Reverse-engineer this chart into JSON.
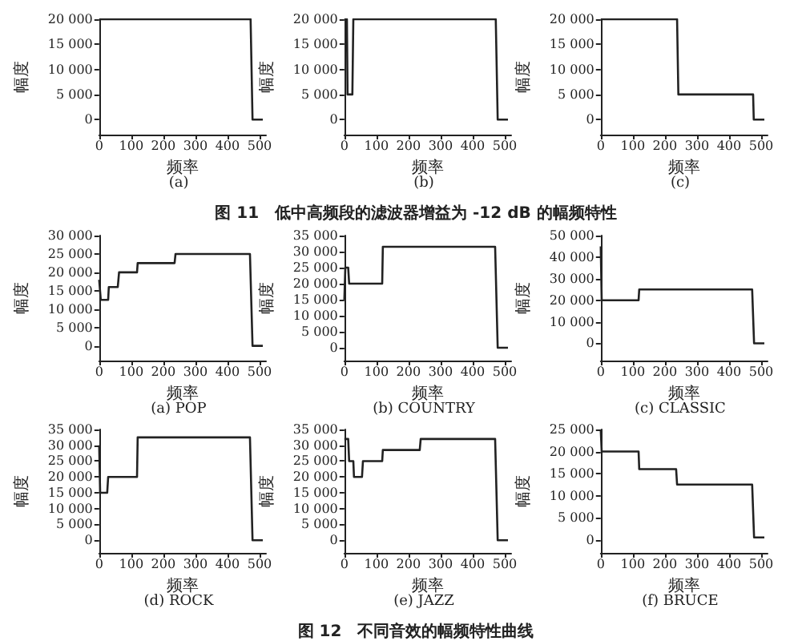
{
  "chart_data": [
    {
      "type": "line",
      "title": "(a)",
      "xlabel": "频率",
      "ylabel": "幅度",
      "x": [
        0,
        472,
        478,
        510
      ],
      "series": [
        {
          "color": "#222222",
          "values": [
            20000,
            20000,
            0,
            0
          ]
        }
      ],
      "xlim": [
        0,
        520
      ],
      "xticks": [
        0,
        100,
        200,
        300,
        400,
        500
      ],
      "ylim": [
        -3000,
        20000
      ],
      "yticks": [
        {
          "value": 0,
          "label": "0"
        },
        {
          "value": 5000,
          "label": "5 000"
        },
        {
          "value": 10000,
          "label": "10 000"
        },
        {
          "value": 15000,
          "label": "15 000"
        },
        {
          "value": 20000,
          "label": "20 000"
        }
      ],
      "marker": "none"
    },
    {
      "type": "line",
      "title": "(b)",
      "xlabel": "频率",
      "ylabel": "幅度",
      "x": [
        0,
        8,
        10,
        25,
        28,
        472,
        478,
        510
      ],
      "series": [
        {
          "color": "#222222",
          "values": [
            20000,
            20000,
            5000,
            5000,
            20000,
            20000,
            0,
            0
          ]
        }
      ],
      "xlim": [
        0,
        520
      ],
      "xticks": [
        0,
        100,
        200,
        300,
        400,
        500
      ],
      "ylim": [
        -3000,
        20000
      ],
      "yticks": [
        {
          "value": 0,
          "label": "0"
        },
        {
          "value": 5000,
          "label": "5 000"
        },
        {
          "value": 10000,
          "label": "10 000"
        },
        {
          "value": 15000,
          "label": "15 000"
        },
        {
          "value": 20000,
          "label": "20 000"
        }
      ],
      "marker": "none",
      "annotations": [
        "图 11　低中高频段的滤波器增益为 -12 dB 的幅频特性"
      ]
    },
    {
      "type": "line",
      "title": "(c)",
      "xlabel": "频率",
      "ylabel": "幅度",
      "x": [
        0,
        238,
        242,
        475,
        477,
        510
      ],
      "series": [
        {
          "color": "#222222",
          "values": [
            20000,
            20000,
            5000,
            5000,
            0,
            0
          ]
        }
      ],
      "xlim": [
        0,
        520
      ],
      "xticks": [
        0,
        100,
        200,
        300,
        400,
        500
      ],
      "ylim": [
        -3000,
        20000
      ],
      "yticks": [
        {
          "value": 0,
          "label": "0"
        },
        {
          "value": 5000,
          "label": "5 000"
        },
        {
          "value": 10000,
          "label": "10 000"
        },
        {
          "value": 15000,
          "label": "15 000"
        },
        {
          "value": 20000,
          "label": "20 000"
        }
      ],
      "marker": "none"
    },
    {
      "type": "line",
      "title": "(a) POP",
      "xlabel": "频率",
      "ylabel": "幅度",
      "x": [
        0,
        5,
        28,
        30,
        58,
        62,
        118,
        120,
        235,
        238,
        470,
        478,
        510
      ],
      "series": [
        {
          "color": "#222222",
          "values": [
            18000,
            12500,
            12500,
            16000,
            16000,
            20000,
            20000,
            22500,
            22500,
            25000,
            25000,
            0,
            0
          ]
        }
      ],
      "xlim": [
        0,
        520
      ],
      "xticks": [
        0,
        100,
        200,
        300,
        400,
        500
      ],
      "ylim": [
        -4000,
        30000
      ],
      "yticks": [
        {
          "value": 0,
          "label": "0"
        },
        {
          "value": 5000,
          "label": "5 000"
        },
        {
          "value": 10000,
          "label": "10 000"
        },
        {
          "value": 15000,
          "label": "15 000"
        },
        {
          "value": 20000,
          "label": "20 000"
        },
        {
          "value": 25000,
          "label": "25 000"
        },
        {
          "value": 30000,
          "label": "30 000"
        }
      ],
      "marker": "none"
    },
    {
      "type": "line",
      "title": "(b) COUNTRY",
      "xlabel": "频率",
      "ylabel": "幅度",
      "x": [
        0,
        3,
        12,
        15,
        118,
        120,
        470,
        478,
        510
      ],
      "series": [
        {
          "color": "#222222",
          "values": [
            15000,
            25000,
            25000,
            20000,
            20000,
            31500,
            31500,
            0,
            0
          ]
        }
      ],
      "xlim": [
        0,
        520
      ],
      "xticks": [
        0,
        100,
        200,
        300,
        400,
        500
      ],
      "ylim": [
        -4000,
        35000
      ],
      "yticks": [
        {
          "value": 0,
          "label": "0"
        },
        {
          "value": 5000,
          "label": "5 000"
        },
        {
          "value": 10000,
          "label": "10 000"
        },
        {
          "value": 15000,
          "label": "15 000"
        },
        {
          "value": 20000,
          "label": "20 000"
        },
        {
          "value": 25000,
          "label": "25 000"
        },
        {
          "value": 30000,
          "label": "30 000"
        },
        {
          "value": 35000,
          "label": "35 000"
        }
      ],
      "marker": "none"
    },
    {
      "type": "line",
      "title": "(c) CLASSIC",
      "xlabel": "频率",
      "ylabel": "幅度",
      "x": [
        0,
        3,
        118,
        120,
        472,
        478,
        510
      ],
      "series": [
        {
          "color": "#222222",
          "values": [
            45000,
            20000,
            20000,
            25000,
            25000,
            0,
            0
          ]
        }
      ],
      "xlim": [
        0,
        520
      ],
      "xticks": [
        0,
        100,
        200,
        300,
        400,
        500
      ],
      "ylim": [
        -8000,
        50000
      ],
      "yticks": [
        {
          "value": 0,
          "label": "0"
        },
        {
          "value": 10000,
          "label": "10 000"
        },
        {
          "value": 20000,
          "label": "20 000"
        },
        {
          "value": 30000,
          "label": "30 000"
        },
        {
          "value": 40000,
          "label": "40 000"
        },
        {
          "value": 50000,
          "label": "50 000"
        }
      ],
      "marker": "none"
    },
    {
      "type": "line",
      "title": "(d) ROCK",
      "xlabel": "频率",
      "ylabel": "幅度",
      "x": [
        0,
        3,
        25,
        28,
        118,
        120,
        470,
        478,
        510
      ],
      "series": [
        {
          "color": "#222222",
          "values": [
            30000,
            15000,
            15000,
            20000,
            20000,
            32500,
            32500,
            0,
            0
          ]
        }
      ],
      "xlim": [
        0,
        520
      ],
      "xticks": [
        0,
        100,
        200,
        300,
        400,
        500
      ],
      "ylim": [
        -4000,
        35000
      ],
      "yticks": [
        {
          "value": 0,
          "label": "0"
        },
        {
          "value": 5000,
          "label": "5 000"
        },
        {
          "value": 10000,
          "label": "10 000"
        },
        {
          "value": 15000,
          "label": "15 000"
        },
        {
          "value": 20000,
          "label": "20 000"
        },
        {
          "value": 25000,
          "label": "25 000"
        },
        {
          "value": 30000,
          "label": "30 000"
        },
        {
          "value": 35000,
          "label": "35 000"
        }
      ],
      "marker": "none"
    },
    {
      "type": "line",
      "title": "(e) JAZZ",
      "xlabel": "频率",
      "ylabel": "幅度",
      "x": [
        0,
        12,
        15,
        28,
        30,
        55,
        58,
        118,
        120,
        235,
        238,
        470,
        478,
        510
      ],
      "series": [
        {
          "color": "#222222",
          "values": [
            32000,
            32000,
            25000,
            25000,
            20000,
            20000,
            25000,
            25000,
            28500,
            28500,
            32000,
            32000,
            0,
            0
          ]
        }
      ],
      "xlim": [
        0,
        520
      ],
      "xticks": [
        0,
        100,
        200,
        300,
        400,
        500
      ],
      "ylim": [
        -4000,
        35000
      ],
      "yticks": [
        {
          "value": 0,
          "label": "0"
        },
        {
          "value": 5000,
          "label": "5 000"
        },
        {
          "value": 10000,
          "label": "10 000"
        },
        {
          "value": 15000,
          "label": "15 000"
        },
        {
          "value": 20000,
          "label": "20 000"
        },
        {
          "value": 25000,
          "label": "25 000"
        },
        {
          "value": 30000,
          "label": "30 000"
        },
        {
          "value": 35000,
          "label": "35 000"
        }
      ],
      "marker": "none",
      "annotations": [
        "图 12　不同音效的幅频特性曲线"
      ]
    },
    {
      "type": "line",
      "title": "(f) BRUCE",
      "xlabel": "频率",
      "ylabel": "幅度",
      "x": [
        0,
        3,
        118,
        120,
        235,
        238,
        472,
        478,
        510
      ],
      "series": [
        {
          "color": "#222222",
          "values": [
            25000,
            20000,
            20000,
            16000,
            16000,
            12500,
            12500,
            500,
            500
          ]
        }
      ],
      "xlim": [
        0,
        520
      ],
      "xticks": [
        0,
        100,
        200,
        300,
        400,
        500
      ],
      "ylim": [
        -3000,
        25000
      ],
      "yticks": [
        {
          "value": 0,
          "label": "0"
        },
        {
          "value": 5000,
          "label": "5 000"
        },
        {
          "value": 10000,
          "label": "10 000"
        },
        {
          "value": 15000,
          "label": "15 000"
        },
        {
          "value": 20000,
          "label": "20 000"
        },
        {
          "value": 25000,
          "label": "25 000"
        }
      ],
      "marker": "none"
    }
  ]
}
